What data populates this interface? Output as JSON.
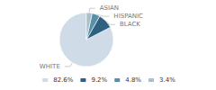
{
  "chart_data": {
    "type": "pie",
    "categories": [
      "WHITE",
      "BLACK",
      "HISPANIC",
      "ASIAN"
    ],
    "values": [
      82.6,
      9.2,
      4.8,
      3.4
    ],
    "value_labels": [
      "82.6%",
      "9.2%",
      "4.8%",
      "3.4%"
    ],
    "colors": [
      "#cfdce8",
      "#2e6080",
      "#5b8fa8",
      "#a8bfcc"
    ],
    "legend": "bottom"
  }
}
